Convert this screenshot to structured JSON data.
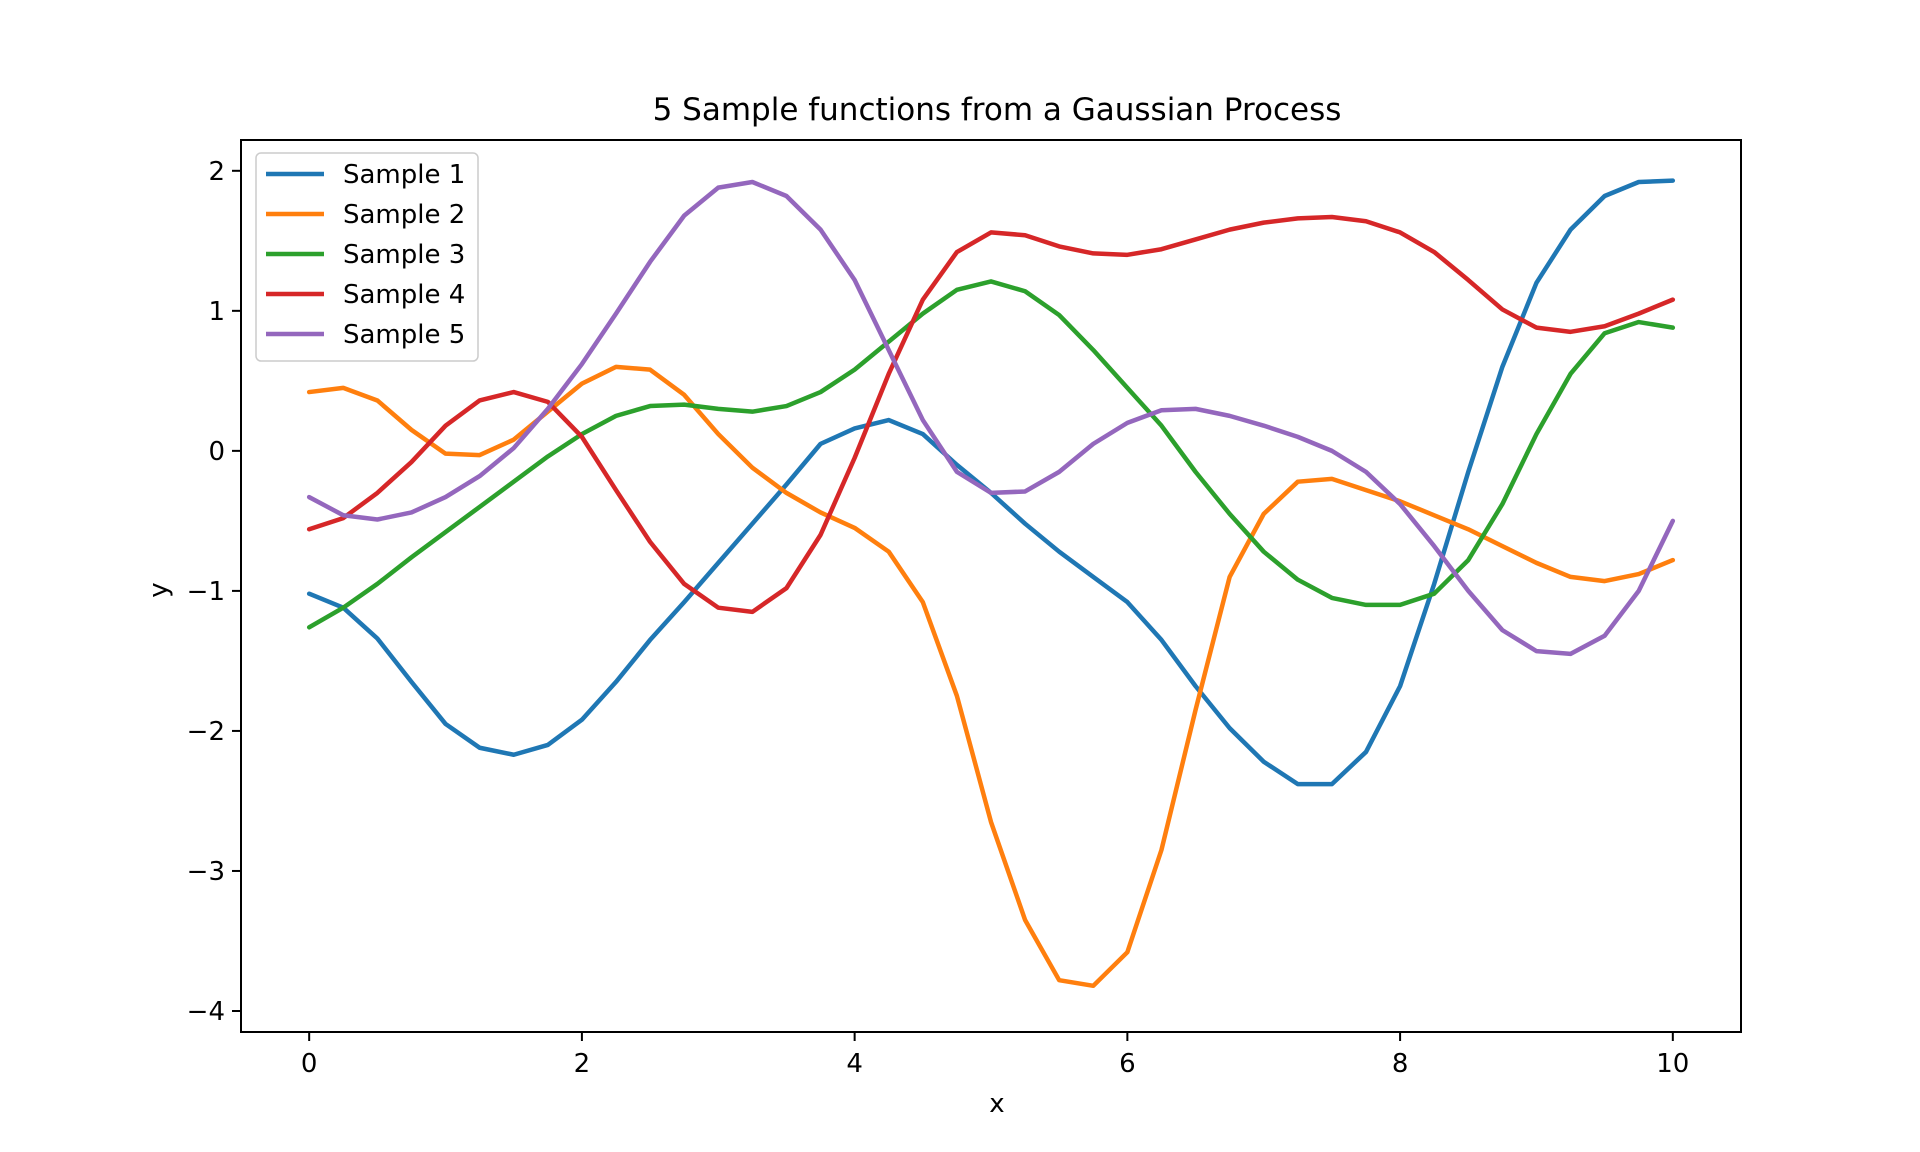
{
  "chart_data": {
    "type": "line",
    "title": "5 Sample functions from a Gaussian Process",
    "xlabel": "x",
    "ylabel": "y",
    "xlim": [
      -0.5,
      10.5
    ],
    "ylim": [
      -4.15,
      2.22
    ],
    "xticks": [
      0,
      2,
      4,
      6,
      8,
      10
    ],
    "yticks": [
      2,
      1,
      0,
      -1,
      -2,
      -3,
      -4
    ],
    "xtick_labels": [
      "0",
      "2",
      "4",
      "6",
      "8",
      "10"
    ],
    "ytick_labels": [
      "2",
      "1",
      "0",
      "−1",
      "−2",
      "−3",
      "−4"
    ],
    "grid": false,
    "legend_position": "top-left",
    "x": [
      0,
      0.25,
      0.5,
      0.75,
      1,
      1.25,
      1.5,
      1.75,
      2,
      2.25,
      2.5,
      2.75,
      3,
      3.25,
      3.5,
      3.75,
      4,
      4.25,
      4.5,
      4.75,
      5,
      5.25,
      5.5,
      5.75,
      6,
      6.25,
      6.5,
      6.75,
      7,
      7.25,
      7.5,
      7.75,
      8,
      8.25,
      8.5,
      8.75,
      9,
      9.25,
      9.5,
      9.75,
      10
    ],
    "series": [
      {
        "name": "Sample 1",
        "color": "#1f77b4",
        "values": [
          -1.02,
          -1.12,
          -1.34,
          -1.65,
          -1.95,
          -2.12,
          -2.17,
          -2.1,
          -1.92,
          -1.65,
          -1.35,
          -1.08,
          -0.8,
          -0.52,
          -0.24,
          0.05,
          0.16,
          0.22,
          0.12,
          -0.1,
          -0.3,
          -0.52,
          -0.72,
          -0.9,
          -1.08,
          -1.35,
          -1.68,
          -1.98,
          -2.22,
          -2.38,
          -2.38,
          -2.15,
          -1.68,
          -0.95,
          -0.15,
          0.6,
          1.2,
          1.58,
          1.82,
          1.92,
          1.93
        ]
      },
      {
        "name": "Sample 2",
        "color": "#ff7f0e",
        "values": [
          0.42,
          0.45,
          0.36,
          0.15,
          -0.02,
          -0.03,
          0.08,
          0.28,
          0.48,
          0.6,
          0.58,
          0.4,
          0.12,
          -0.12,
          -0.3,
          -0.44,
          -0.55,
          -0.72,
          -1.08,
          -1.75,
          -2.65,
          -3.35,
          -3.78,
          -3.82,
          -3.58,
          -2.85,
          -1.85,
          -0.9,
          -0.45,
          -0.22,
          -0.2,
          -0.28,
          -0.36,
          -0.46,
          -0.56,
          -0.68,
          -0.8,
          -0.9,
          -0.93,
          -0.88,
          -0.78
        ]
      },
      {
        "name": "Sample 3",
        "color": "#2ca02c",
        "values": [
          -1.26,
          -1.12,
          -0.95,
          -0.76,
          -0.58,
          -0.4,
          -0.22,
          -0.04,
          0.12,
          0.25,
          0.32,
          0.33,
          0.3,
          0.28,
          0.32,
          0.42,
          0.58,
          0.78,
          0.98,
          1.15,
          1.21,
          1.14,
          0.97,
          0.72,
          0.45,
          0.18,
          -0.15,
          -0.45,
          -0.72,
          -0.92,
          -1.05,
          -1.1,
          -1.1,
          -1.02,
          -0.78,
          -0.38,
          0.12,
          0.55,
          0.84,
          0.92,
          0.88
        ]
      },
      {
        "name": "Sample 4",
        "color": "#d62728",
        "values": [
          -0.56,
          -0.48,
          -0.3,
          -0.08,
          0.18,
          0.36,
          0.42,
          0.35,
          0.1,
          -0.28,
          -0.65,
          -0.95,
          -1.12,
          -1.15,
          -0.98,
          -0.6,
          -0.05,
          0.55,
          1.08,
          1.42,
          1.56,
          1.54,
          1.46,
          1.41,
          1.4,
          1.44,
          1.51,
          1.58,
          1.63,
          1.66,
          1.67,
          1.64,
          1.56,
          1.42,
          1.22,
          1.01,
          0.88,
          0.85,
          0.89,
          0.98,
          1.08
        ]
      },
      {
        "name": "Sample 5",
        "color": "#9467bd",
        "values": [
          -0.33,
          -0.46,
          -0.49,
          -0.44,
          -0.33,
          -0.18,
          0.02,
          0.3,
          0.62,
          0.98,
          1.35,
          1.68,
          1.88,
          1.92,
          1.82,
          1.58,
          1.22,
          0.72,
          0.22,
          -0.15,
          -0.3,
          -0.29,
          -0.15,
          0.05,
          0.2,
          0.29,
          0.3,
          0.25,
          0.18,
          0.1,
          0,
          -0.15,
          -0.38,
          -0.68,
          -1.0,
          -1.28,
          -1.43,
          -1.45,
          -1.32,
          -1.0,
          -0.5
        ]
      }
    ]
  }
}
